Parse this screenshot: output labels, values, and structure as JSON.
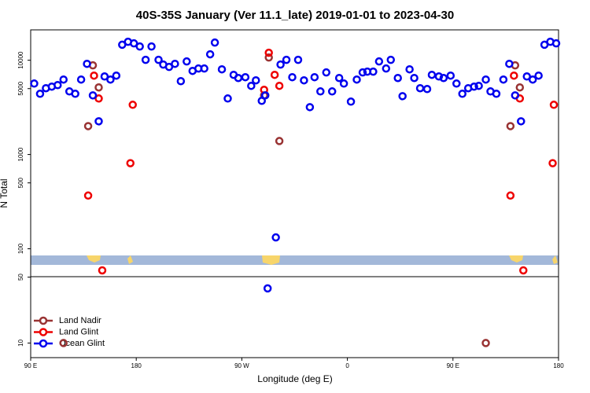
{
  "chart_data": {
    "type": "scatter",
    "title": "40S-35S January (Ver 11.1_late)   2019-01-01 to 2023-04-30",
    "x_label": "Longitude (deg E)",
    "y_label": "N Total",
    "xlim": [
      90,
      540
    ],
    "xticks": [
      {
        "value": 90,
        "label": "90 E"
      },
      {
        "value": 180,
        "label": "180"
      },
      {
        "value": 270,
        "label": "90 W"
      },
      {
        "value": 360,
        "label": "0"
      },
      {
        "value": 450,
        "label": "90 E"
      },
      {
        "value": 540,
        "label": "180"
      }
    ],
    "ylim": [
      7,
      21000
    ],
    "log_y": true,
    "yticks": [
      10,
      50,
      100,
      500,
      1000,
      5000,
      10000
    ],
    "legend": "bottom-left",
    "series": [
      {
        "name": "Land Nadir",
        "color": "#993333",
        "x": [
          143,
          139,
          148,
          293,
          289,
          302,
          503,
          499,
          507,
          118,
          478
        ],
        "values": [
          8830,
          2000,
          5150,
          10700,
          4240,
          1390,
          8830,
          2000,
          5150,
          10,
          10
        ]
      },
      {
        "name": "Land Glint",
        "color": "#ee0000",
        "x": [
          139,
          144,
          148,
          151,
          177,
          175,
          293,
          298,
          302,
          289,
          499,
          502,
          507,
          510,
          536,
          535
        ],
        "values": [
          367,
          6870,
          3930,
          59,
          3370,
          809,
          12000,
          7000,
          5350,
          4860,
          367,
          6870,
          3930,
          59,
          3370,
          809
        ]
      },
      {
        "name": "Ocean Glint",
        "color": "#0000ee",
        "x": [
          93,
          98,
          103,
          108,
          113,
          118,
          123,
          128,
          133,
          138,
          143,
          148,
          153,
          158,
          163,
          168,
          173,
          178,
          183,
          188,
          193,
          199,
          203,
          208,
          213,
          218,
          223,
          228,
          233,
          238,
          243,
          247,
          253,
          258,
          263,
          267,
          273,
          278,
          282,
          287,
          290,
          292,
          299,
          303,
          308,
          313,
          318,
          323,
          328,
          332,
          337,
          342,
          347,
          353,
          357,
          363,
          368,
          373,
          377,
          382,
          387,
          393,
          397,
          403,
          407,
          413,
          417,
          422,
          428,
          432,
          438,
          442,
          448,
          453,
          458,
          463,
          468,
          472,
          478,
          482,
          487,
          493,
          498,
          503,
          508,
          513,
          518,
          523,
          528,
          533,
          538
        ],
        "values": [
          5660,
          4410,
          5050,
          5250,
          5450,
          6240,
          4670,
          4410,
          6240,
          9160,
          4240,
          2250,
          6730,
          6240,
          6870,
          14600,
          15700,
          15100,
          14000,
          10100,
          14000,
          10100,
          9000,
          8490,
          9160,
          6000,
          9710,
          7710,
          8170,
          8170,
          11560,
          15400,
          8010,
          3930,
          7000,
          6480,
          6610,
          5350,
          6120,
          3710,
          4240,
          38,
          132,
          9000,
          10100,
          6610,
          10100,
          6120,
          3180,
          6610,
          4670,
          7420,
          4670,
          6480,
          5660,
          3640,
          6240,
          7420,
          7570,
          7570,
          9710,
          8170,
          10100,
          6480,
          4160,
          8010,
          6480,
          5050,
          4950,
          7000,
          6730,
          6480,
          6870,
          5660,
          4410,
          5050,
          5250,
          5350,
          6240,
          4670,
          4410,
          6240,
          9160,
          4240,
          2250,
          6730,
          6240,
          6870,
          14600,
          15700,
          15100
        ]
      }
    ]
  }
}
